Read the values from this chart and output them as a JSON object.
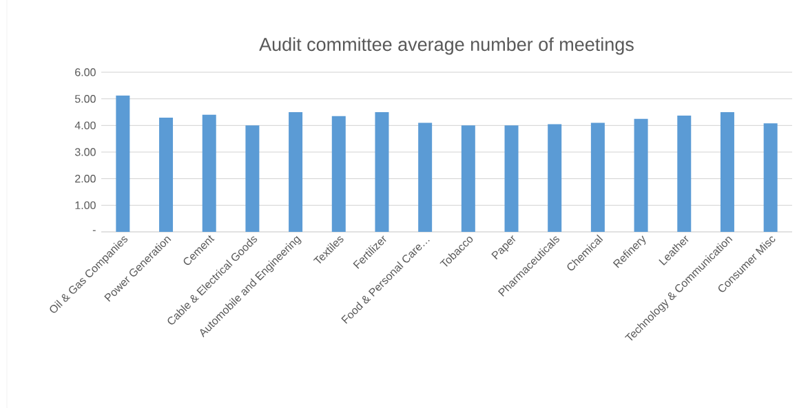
{
  "chart_data": {
    "type": "bar",
    "title": "Audit committee average number of meetings",
    "categories": [
      "Oil & Gas Companies",
      "Power Generation",
      "Cement",
      "Cable & Electrical Goods",
      "Automobile and Engineering",
      "Textiles",
      "Fertilizer",
      "Food & Personal Care…",
      "Tobacco",
      "Paper",
      "Pharmaceuticals",
      "Chemical",
      "Refinery",
      "Leather",
      "Technology & Communication",
      "Consumer Misc"
    ],
    "values": [
      5.13,
      4.29,
      4.4,
      4.0,
      4.5,
      4.35,
      4.5,
      4.1,
      4.0,
      4.0,
      4.05,
      4.1,
      4.25,
      4.37,
      4.5,
      4.08
    ],
    "color": "#5b9bd5",
    "ylim": [
      0,
      6
    ],
    "yticks": [
      {
        "value": 0,
        "label": "-"
      },
      {
        "value": 1,
        "label": "1.00"
      },
      {
        "value": 2,
        "label": "2.00"
      },
      {
        "value": 3,
        "label": "3.00"
      },
      {
        "value": 4,
        "label": "4.00"
      },
      {
        "value": 5,
        "label": "5.00"
      },
      {
        "value": 6,
        "label": "6.00"
      }
    ],
    "grid": "y"
  }
}
